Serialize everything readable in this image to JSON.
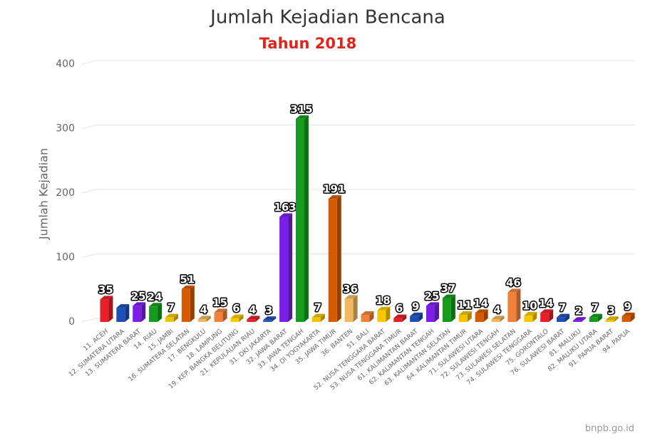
{
  "chart_data": {
    "type": "bar",
    "title": "Jumlah Kejadian Bencana",
    "subtitle": "Tahun 2018",
    "ylabel": "Jumlah Kejadian",
    "credit": "bnpb.go.id",
    "categories": [
      "11. ACEH",
      "12. SUMATERA UTARA",
      "13. SUMATERA BARAT",
      "14. RIAU",
      "15. JAMBI",
      "16. SUMATERA SELATAN",
      "17. BENGKULU",
      "18. LAMPUNG",
      "19. KEP. BANGKA BELITUNG",
      "21. KEPULAUAN RIAU",
      "31. DKI JAKARTA",
      "32. JAWA BARAT",
      "33. JAWA TENGAH",
      "34. DI YOGYAKARTA",
      "35. JAWA TIMUR",
      "36. BANTEN",
      "51. BALI",
      "52. NUSA TENGGARA BARAT",
      "53. NUSA TENGGARA TIMUR",
      "61. KALIMANTAN BARAT",
      "62. KALIMANTAN TENGAH",
      "63. KALIMANTAN SELATAN",
      "64. KALIMANTAN TIMUR",
      "71. SULAWESI UTARA",
      "72. SULAWESI TENGAH",
      "73. SULAWESI SELATAN",
      "74. SULAWESI TENGGARA",
      "75. GORONTALO",
      "76. SULAWESI BARAT",
      "81. MALUKU",
      "82. MALUKU UTARA",
      "91. PAPUA BARAT",
      "94. PAPUA"
    ],
    "values": [
      35,
      22,
      25,
      24,
      7,
      51,
      4,
      15,
      6,
      4,
      3,
      163,
      315,
      7,
      191,
      36,
      11,
      18,
      6,
      9,
      25,
      37,
      11,
      14,
      4,
      46,
      10,
      14,
      7,
      2,
      7,
      3,
      9
    ],
    "value_labels": [
      "35",
      null,
      "25",
      "24",
      "7",
      "51",
      "4",
      "15",
      "6",
      "4",
      "3",
      "163",
      "315",
      "7",
      "191",
      "36",
      null,
      "18",
      "6",
      "9",
      "25",
      "37",
      "11",
      "14",
      "4",
      "46",
      "10",
      "14",
      "7",
      "2",
      "7",
      "3",
      "9"
    ],
    "colors": [
      "#e8202a",
      "#1f4fb4",
      "#7b1fe8",
      "#169c1c",
      "#f2c200",
      "#d65a00",
      "#f0b860",
      "#f0803c",
      "#f8c800"
    ],
    "ylim": [
      0,
      400
    ],
    "yticks": [
      0,
      100,
      200,
      300,
      400
    ],
    "grid": true
  }
}
